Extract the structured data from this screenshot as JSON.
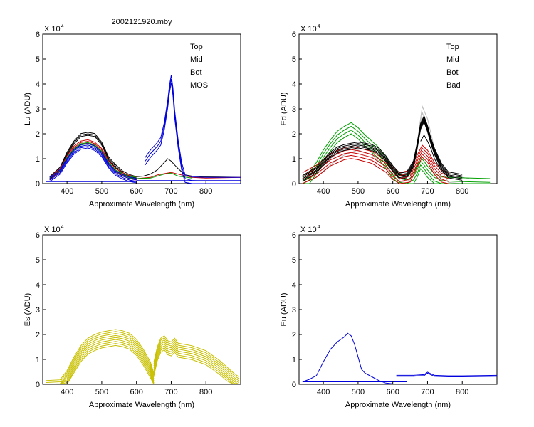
{
  "figure_title": "2002121920.mby",
  "colors": {
    "Top": "#000000",
    "Mid": "#cc0000",
    "Bot": "#00a000",
    "MOS": "#0000dd",
    "Bad": "#bbbbbb",
    "Es": "#c8c000"
  },
  "chart_data": [
    {
      "id": "lu",
      "type": "line",
      "title": "",
      "xlabel": "Approximate Wavelength (nm)",
      "ylabel": "Lu (ADU)",
      "scale_label": "X 10",
      "scale_exp": "4",
      "xlim": [
        330,
        900
      ],
      "ylim": [
        0,
        6
      ],
      "xticks": [
        400,
        500,
        600,
        700,
        800
      ],
      "yticks": [
        0,
        1,
        2,
        3,
        4,
        5,
        6
      ],
      "legend": [
        "Top",
        "Mid",
        "Bot",
        "MOS"
      ],
      "series": [
        {
          "name": "Top",
          "color": "Top",
          "offsets": [
            0,
            0.06,
            -0.06
          ],
          "x": [
            350,
            380,
            400,
            420,
            440,
            460,
            480,
            500,
            520,
            540,
            560,
            580,
            600
          ],
          "y": [
            0.22,
            0.6,
            1.2,
            1.65,
            1.95,
            2.0,
            1.95,
            1.6,
            1.0,
            0.7,
            0.45,
            0.3,
            0.22
          ]
        },
        {
          "name": "Top",
          "color": "Top",
          "offsets": [
            0
          ],
          "x": [
            600,
            620,
            640,
            660,
            680,
            690,
            700,
            710,
            720,
            740,
            760,
            800,
            900
          ],
          "y": [
            0.28,
            0.3,
            0.38,
            0.55,
            0.85,
            1.0,
            0.9,
            0.75,
            0.6,
            0.35,
            0.3,
            0.28,
            0.3
          ]
        },
        {
          "name": "Mid",
          "color": "Mid",
          "offsets": [
            0,
            0.06,
            -0.06
          ],
          "x": [
            350,
            380,
            400,
            420,
            440,
            460,
            480,
            500,
            520,
            540,
            560,
            580,
            600
          ],
          "y": [
            0.2,
            0.55,
            1.05,
            1.45,
            1.65,
            1.7,
            1.6,
            1.35,
            0.85,
            0.55,
            0.38,
            0.26,
            0.2
          ]
        },
        {
          "name": "Mid",
          "color": "Mid",
          "offsets": [
            0
          ],
          "x": [
            600,
            640,
            660,
            680,
            700,
            720,
            760,
            800,
            900
          ],
          "y": [
            0.2,
            0.25,
            0.35,
            0.4,
            0.45,
            0.38,
            0.25,
            0.22,
            0.25
          ]
        },
        {
          "name": "Bot",
          "color": "Bot",
          "offsets": [
            0,
            0.05
          ],
          "x": [
            350,
            380,
            400,
            420,
            440,
            460,
            480,
            500,
            520,
            540,
            560,
            580,
            600
          ],
          "y": [
            0.2,
            0.5,
            1.0,
            1.35,
            1.55,
            1.6,
            1.5,
            1.25,
            0.8,
            0.5,
            0.35,
            0.24,
            0.2
          ]
        },
        {
          "name": "Bot",
          "color": "Bot",
          "offsets": [
            0
          ],
          "x": [
            600,
            640,
            660,
            680,
            700,
            720,
            760
          ],
          "y": [
            0.2,
            0.22,
            0.3,
            0.38,
            0.42,
            0.3,
            0.22
          ]
        },
        {
          "name": "MOS",
          "color": "MOS",
          "offsets": [
            0,
            0.06,
            -0.06,
            -0.12
          ],
          "x": [
            350,
            380,
            400,
            420,
            440,
            460,
            480,
            500,
            520,
            540,
            560,
            580,
            600
          ],
          "y": [
            0.2,
            0.5,
            0.95,
            1.3,
            1.5,
            1.55,
            1.45,
            1.2,
            0.75,
            0.45,
            0.3,
            0.2,
            0.15
          ]
        },
        {
          "name": "MOS",
          "color": "MOS",
          "offsets": [
            0
          ],
          "x": [
            340,
            600
          ],
          "y": [
            0.08,
            0.08
          ]
        },
        {
          "name": "MOS",
          "color": "MOS",
          "offsets": [
            0,
            0.15,
            -0.15
          ],
          "x": [
            625,
            640,
            660,
            670,
            680,
            690,
            695,
            700,
            705,
            710,
            720,
            730,
            740,
            760,
            800,
            900
          ],
          "y": [
            0.9,
            1.2,
            1.5,
            1.7,
            2.3,
            3.2,
            3.8,
            4.2,
            3.7,
            2.8,
            1.6,
            0.7,
            0.2,
            0.12,
            0.1,
            0.1
          ]
        },
        {
          "name": "MOS",
          "color": "MOS",
          "offsets": [
            0
          ],
          "x": [
            600,
            900
          ],
          "y": [
            0.12,
            0.12
          ]
        }
      ]
    },
    {
      "id": "ed",
      "type": "line",
      "title": "",
      "xlabel": "Approximate Wavelength (nm)",
      "ylabel": "Ed  (ADU)",
      "scale_label": "X 10",
      "scale_exp": "4",
      "xlim": [
        330,
        900
      ],
      "ylim": [
        0,
        6
      ],
      "xticks": [
        400,
        500,
        600,
        700,
        800
      ],
      "yticks": [
        0,
        1,
        2,
        3,
        4,
        5,
        6
      ],
      "legend": [
        "Top",
        "Mid",
        "Bot",
        "Bad"
      ],
      "series": [
        {
          "name": "Bad",
          "color": "Bad",
          "offsets": [
            0,
            -0.25
          ],
          "x": [
            340,
            380,
            420,
            460,
            500,
            540,
            580,
            620,
            650,
            670,
            685,
            700,
            720,
            740,
            760,
            800,
            820
          ],
          "y": [
            0.2,
            0.5,
            1.0,
            1.4,
            1.6,
            1.4,
            0.9,
            0.3,
            0.4,
            1.6,
            3.1,
            2.6,
            1.4,
            0.8,
            0.3,
            0.25,
            0.2
          ]
        },
        {
          "name": "Bot",
          "color": "Bot",
          "offsets": [
            0,
            0.15,
            -0.15,
            -0.3
          ],
          "x": [
            340,
            360,
            380,
            400,
            420,
            440,
            460,
            480,
            500,
            520,
            540,
            560,
            580,
            600,
            620,
            640,
            660,
            670,
            680,
            690,
            700,
            720,
            740,
            760,
            800,
            880
          ],
          "y": [
            0.1,
            0.3,
            0.7,
            1.2,
            1.6,
            1.95,
            2.15,
            2.3,
            2.1,
            1.8,
            1.55,
            1.3,
            0.9,
            0.5,
            0.2,
            0.15,
            0.3,
            0.55,
            0.9,
            0.75,
            0.55,
            0.25,
            0.12,
            0.1,
            0.08,
            0.05
          ]
        },
        {
          "name": "Mid",
          "color": "Mid",
          "offsets": [
            0,
            0.12,
            -0.12,
            0.24,
            -0.24
          ],
          "x": [
            340,
            380,
            420,
            460,
            480,
            500,
            540,
            580,
            600,
            620,
            650,
            670,
            685,
            700,
            720,
            740,
            760
          ],
          "y": [
            0.2,
            0.5,
            0.95,
            1.2,
            1.25,
            1.2,
            1.05,
            0.7,
            0.4,
            0.2,
            0.3,
            0.9,
            1.3,
            1.1,
            0.6,
            0.3,
            0.2
          ]
        },
        {
          "name": "Top",
          "color": "Top",
          "offsets": [
            0,
            0.06,
            -0.06,
            0.12,
            -0.12
          ],
          "x": [
            340,
            380,
            400,
            420,
            440,
            460,
            480,
            500,
            520,
            540,
            560,
            580,
            600,
            620,
            640,
            660,
            670,
            680,
            690,
            700,
            710,
            720,
            740,
            760,
            800
          ],
          "y": [
            0.2,
            0.55,
            0.85,
            1.15,
            1.35,
            1.45,
            1.5,
            1.55,
            1.5,
            1.45,
            1.3,
            1.0,
            0.6,
            0.3,
            0.35,
            0.8,
            1.5,
            2.3,
            2.6,
            2.2,
            1.7,
            1.3,
            0.7,
            0.35,
            0.25
          ]
        },
        {
          "name": "Top",
          "color": "Top",
          "offsets": [
            0
          ],
          "x": [
            680,
            690,
            700,
            710,
            720,
            740,
            760
          ],
          "y": [
            1.7,
            1.95,
            1.7,
            1.4,
            1.0,
            0.5,
            0.3
          ]
        }
      ]
    },
    {
      "id": "es",
      "type": "line",
      "title": "",
      "xlabel": "Approximate Wavelength (nm)",
      "ylabel": "Es  (ADU)",
      "scale_label": "X 10",
      "scale_exp": "4",
      "xlim": [
        330,
        900
      ],
      "ylim": [
        0,
        6
      ],
      "xticks": [
        400,
        500,
        600,
        700,
        800
      ],
      "yticks": [
        0,
        1,
        2,
        3,
        4,
        5,
        6
      ],
      "legend": [],
      "series": [
        {
          "name": "Es",
          "color": "Es",
          "offsets": [
            0,
            -0.08,
            -0.16,
            -0.24,
            -0.32,
            -0.4,
            -0.48,
            -0.56,
            -0.64
          ],
          "x": [
            340,
            380,
            400,
            420,
            440,
            460,
            480,
            500,
            520,
            540,
            560,
            580,
            600,
            620,
            640,
            650
          ],
          "y": [
            0.15,
            0.18,
            0.55,
            1.1,
            1.55,
            1.85,
            2.0,
            2.1,
            2.15,
            2.2,
            2.15,
            2.05,
            1.8,
            1.4,
            0.9,
            0.45
          ]
        },
        {
          "name": "Es",
          "color": "Es",
          "offsets": [
            0,
            -0.08,
            -0.16,
            -0.24,
            -0.32,
            -0.4,
            -0.48,
            -0.56
          ],
          "x": [
            650,
            660,
            670,
            680,
            690,
            700,
            710,
            720,
            740,
            760,
            780,
            800,
            820,
            840,
            860,
            880,
            895
          ],
          "y": [
            0.9,
            1.5,
            1.85,
            1.95,
            1.75,
            1.7,
            1.85,
            1.65,
            1.6,
            1.55,
            1.45,
            1.35,
            1.15,
            0.95,
            0.7,
            0.45,
            0.3
          ]
        }
      ]
    },
    {
      "id": "eu",
      "type": "line",
      "title": "",
      "xlabel": "Approximate Wavelength (nm)",
      "ylabel": "Eu  (ADU)",
      "scale_label": "X 10",
      "scale_exp": "4",
      "xlim": [
        330,
        900
      ],
      "ylim": [
        0,
        6
      ],
      "xticks": [
        400,
        500,
        600,
        700,
        800
      ],
      "yticks": [
        0,
        1,
        2,
        3,
        4,
        5,
        6
      ],
      "legend": [],
      "series": [
        {
          "name": "Eu",
          "color": "MOS",
          "offsets": [
            0
          ],
          "x": [
            340,
            360,
            380,
            400,
            420,
            440,
            460,
            470,
            480,
            490,
            500,
            510,
            520,
            540,
            560,
            580,
            600
          ],
          "y": [
            0.1,
            0.2,
            0.35,
            0.9,
            1.4,
            1.7,
            1.9,
            2.05,
            1.95,
            1.6,
            1.1,
            0.6,
            0.45,
            0.3,
            0.15,
            0.05,
            0.02
          ]
        },
        {
          "name": "Eu",
          "color": "MOS",
          "offsets": [
            0
          ],
          "x": [
            340,
            640
          ],
          "y": [
            0.1,
            0.1
          ]
        },
        {
          "name": "Eu",
          "color": "MOS",
          "offsets": [
            0,
            0.04
          ],
          "x": [
            610,
            660,
            690,
            700,
            710,
            720,
            760,
            800,
            900
          ],
          "y": [
            0.32,
            0.32,
            0.35,
            0.45,
            0.38,
            0.32,
            0.3,
            0.3,
            0.32
          ]
        }
      ]
    }
  ]
}
